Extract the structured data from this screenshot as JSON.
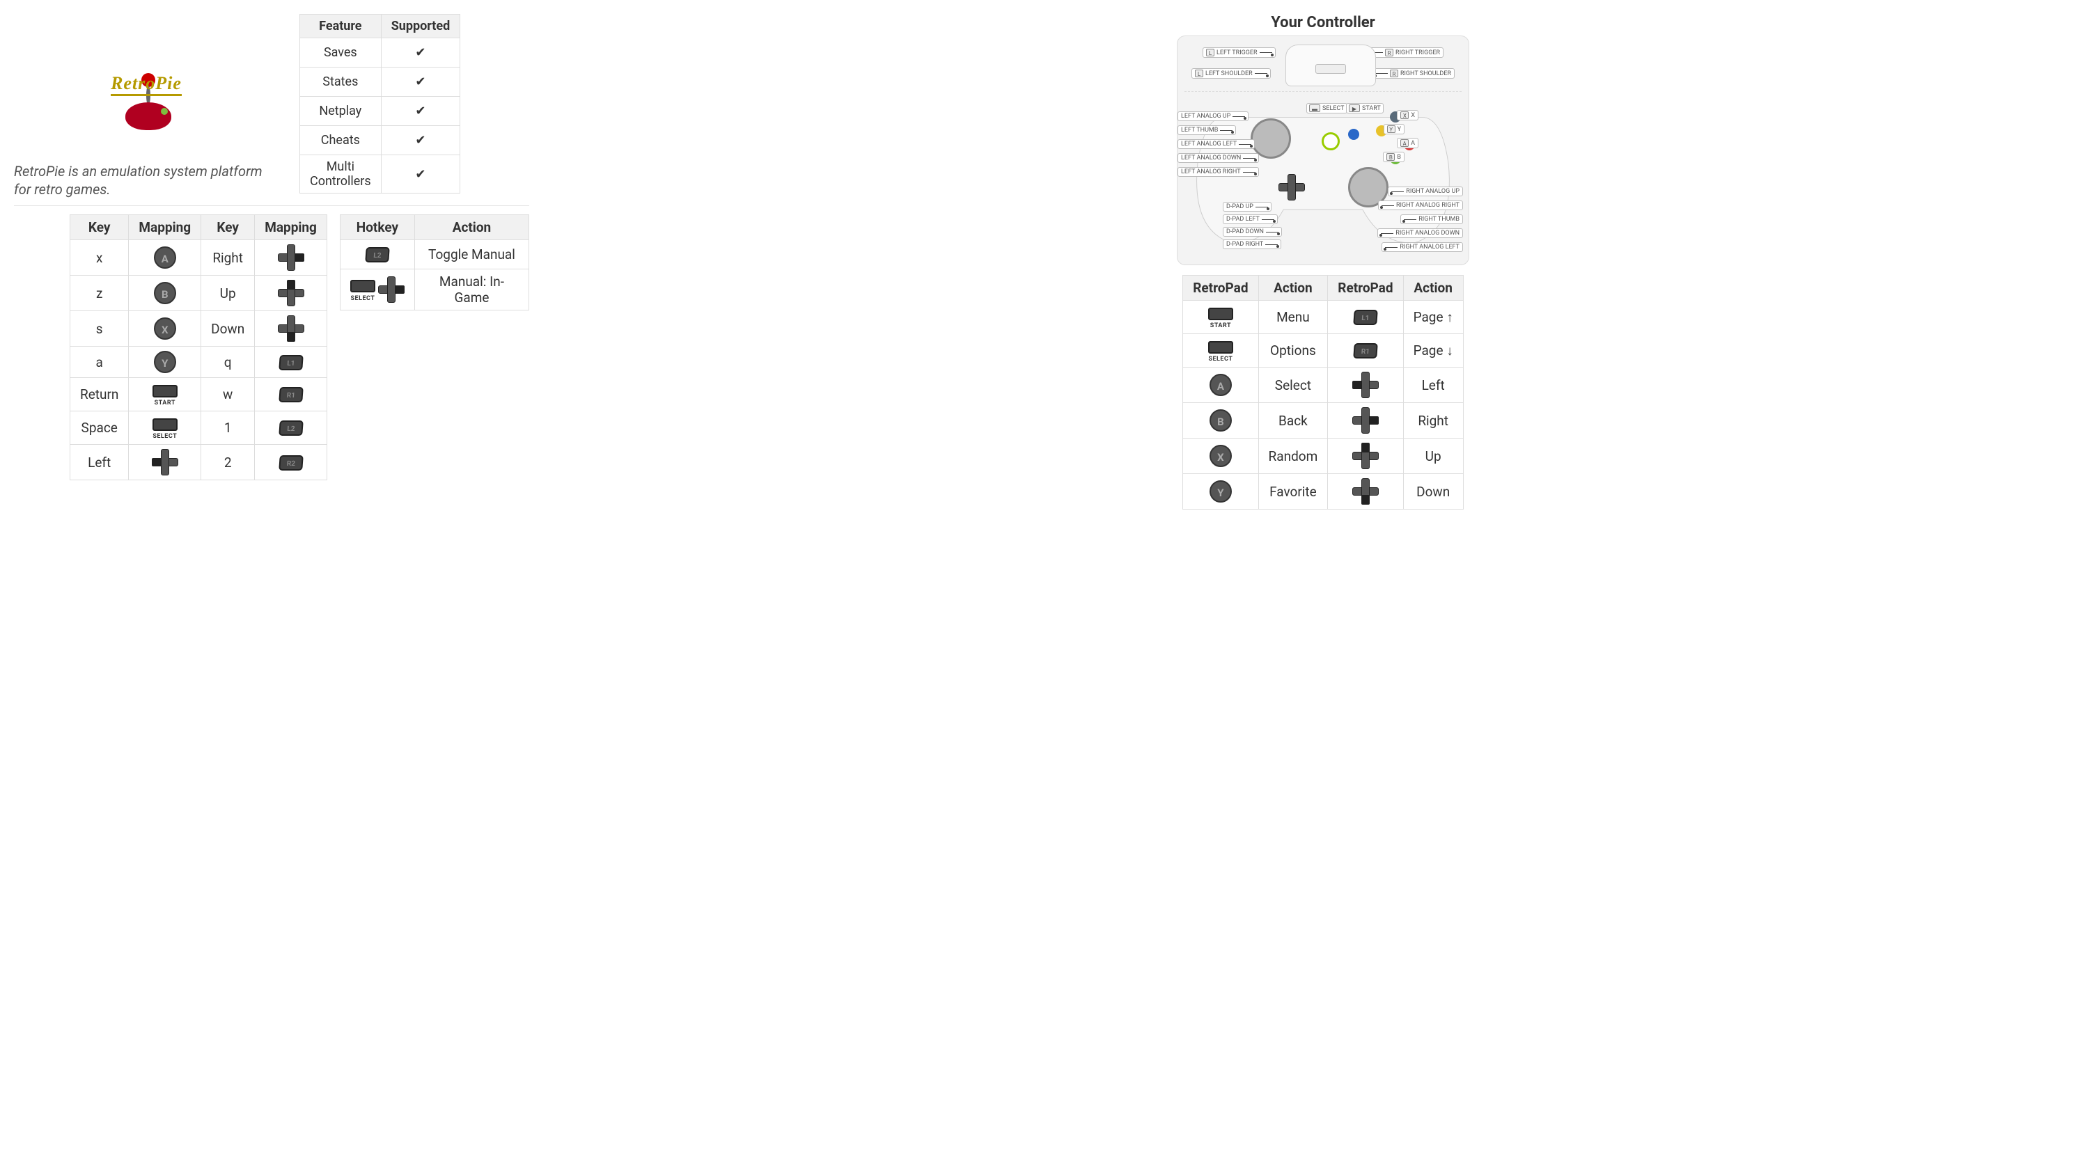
{
  "logo": {
    "text": "RetroPie"
  },
  "tagline": "RetroPie is an emulation system platform for retro games.",
  "features": {
    "columns": [
      "Feature",
      "Supported"
    ],
    "rows": [
      {
        "feature": "Saves",
        "supported": "✔"
      },
      {
        "feature": "States",
        "supported": "✔"
      },
      {
        "feature": "Netplay",
        "supported": "✔"
      },
      {
        "feature": "Cheats",
        "supported": "✔"
      },
      {
        "feature": "Multi Controllers",
        "supported": "✔"
      }
    ]
  },
  "key_mapping": {
    "columns": [
      "Key",
      "Mapping",
      "Key",
      "Mapping"
    ],
    "rows": [
      {
        "k1": "x",
        "m1_icon": "A",
        "k2": "Right",
        "m2_icon": "dpad-right"
      },
      {
        "k1": "z",
        "m1_icon": "B",
        "k2": "Up",
        "m2_icon": "dpad-up"
      },
      {
        "k1": "s",
        "m1_icon": "X",
        "k2": "Down",
        "m2_icon": "dpad-down"
      },
      {
        "k1": "a",
        "m1_icon": "Y",
        "k2": "q",
        "m2_icon": "L1"
      },
      {
        "k1": "Return",
        "m1_icon": "START",
        "k2": "w",
        "m2_icon": "R1"
      },
      {
        "k1": "Space",
        "m1_icon": "SELECT",
        "k2": "1",
        "m2_icon": "L2"
      },
      {
        "k1": "Left",
        "m1_icon": "dpad-left",
        "k2": "2",
        "m2_icon": "R2"
      }
    ]
  },
  "hotkeys": {
    "columns": [
      "Hotkey",
      "Action"
    ],
    "rows": [
      {
        "combo": [
          "L2"
        ],
        "action": "Toggle Manual"
      },
      {
        "combo": [
          "SELECT",
          "dpad-right"
        ],
        "action": "Manual: In-Game"
      }
    ]
  },
  "controller": {
    "title": "Your Controller",
    "top_labels": {
      "left_trigger": "LEFT TRIGGER",
      "right_trigger": "RIGHT TRIGGER",
      "left_shoulder": "LEFT SHOULDER",
      "right_shoulder": "RIGHT SHOULDER",
      "l_key": "L",
      "r_key": "R"
    },
    "body_labels": {
      "left_analog_up": "LEFT ANALOG UP",
      "left_thumb": "LEFT THUMB",
      "left_analog_left": "LEFT ANALOG LEFT",
      "left_analog_down": "LEFT ANALOG DOWN",
      "left_analog_right": "LEFT ANALOG RIGHT",
      "dpad_up": "D-PAD UP",
      "dpad_left": "D-PAD LEFT",
      "dpad_down": "D-PAD DOWN",
      "dpad_right": "D-PAD RIGHT",
      "select": "SELECT",
      "start": "START",
      "x": "X",
      "y": "Y",
      "a": "A",
      "b": "B",
      "right_analog_up": "RIGHT ANALOG UP",
      "right_analog_right": "RIGHT ANALOG RIGHT",
      "right_thumb": "RIGHT THUMB",
      "right_analog_down": "RIGHT ANALOG DOWN",
      "right_analog_left": "RIGHT ANALOG LEFT"
    },
    "colors": {
      "x": "#5a6b7a",
      "y": "#e8c22a",
      "a": "#d83a3a",
      "b": "#6dbb3a",
      "guide": "#9c0"
    }
  },
  "retropad": {
    "columns": [
      "RetroPad",
      "Action",
      "RetroPad",
      "Action"
    ],
    "rows": [
      {
        "i1": "START",
        "a1": "Menu",
        "i2": "L1",
        "a2": "Page ↑"
      },
      {
        "i1": "SELECT",
        "a1": "Options",
        "i2": "R1",
        "a2": "Page ↓"
      },
      {
        "i1": "A",
        "a1": "Select",
        "i2": "dpad-left",
        "a2": "Left"
      },
      {
        "i1": "B",
        "a1": "Back",
        "i2": "dpad-right",
        "a2": "Right"
      },
      {
        "i1": "X",
        "a1": "Random",
        "i2": "dpad-up",
        "a2": "Up"
      },
      {
        "i1": "Y",
        "a1": "Favorite",
        "i2": "dpad-down",
        "a2": "Down"
      }
    ]
  }
}
